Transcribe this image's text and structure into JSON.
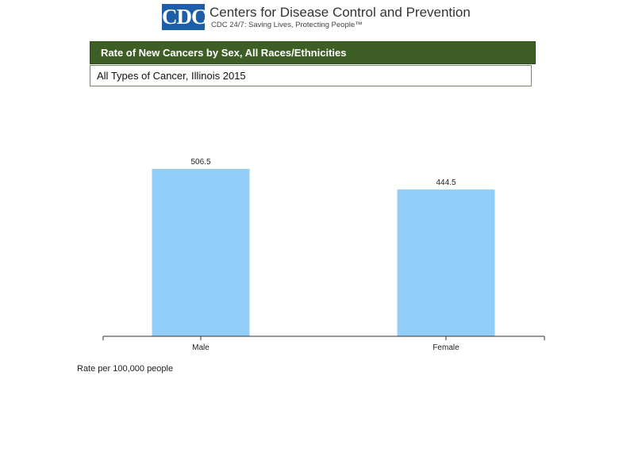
{
  "header": {
    "logo_text": "CDC",
    "org_name": "Centers for Disease Control and Prevention",
    "tagline": "CDC 24/7: Saving Lives, Protecting People™"
  },
  "chart_data": {
    "type": "bar",
    "title": "Rate of New Cancers by Sex, All Races/Ethnicities",
    "subtitle": "All Types of Cancer, Illinois 2015",
    "categories": [
      "Male",
      "Female"
    ],
    "values": [
      506.5,
      444.5
    ],
    "data_labels": [
      "506.5",
      "444.5"
    ],
    "xlabel": "",
    "ylabel": "",
    "ylim": [
      0,
      506.5
    ],
    "grid": false,
    "bar_color": "#92cff8",
    "footnote": "Rate per 100,000 people"
  }
}
